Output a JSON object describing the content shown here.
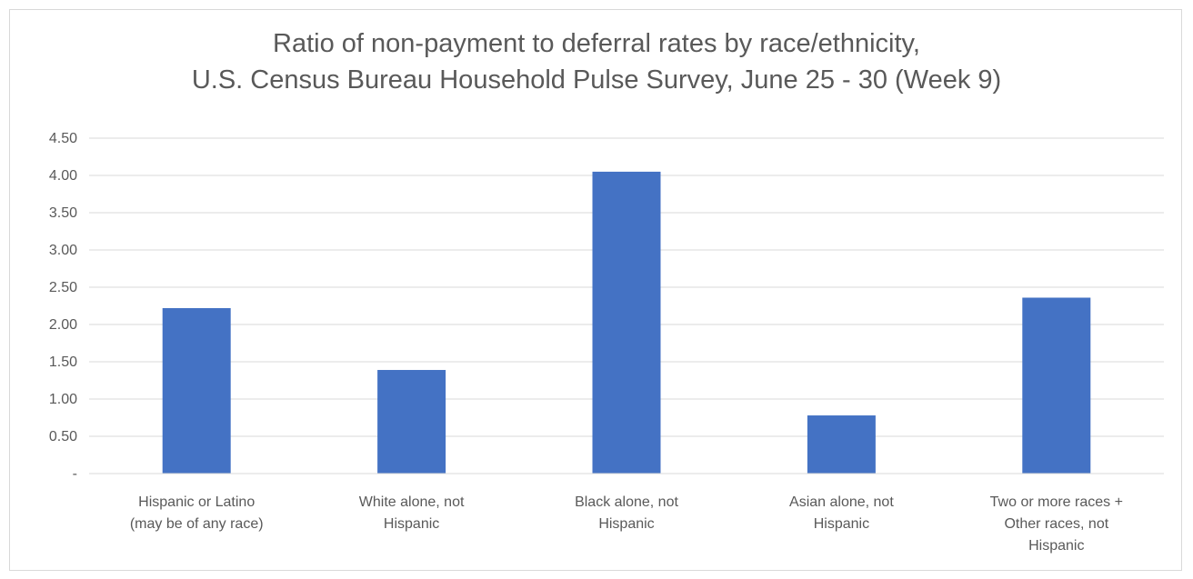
{
  "chart_data": {
    "type": "bar",
    "title_lines": [
      "Ratio of non-payment to deferral rates by race/ethnicity,",
      "U.S. Census Bureau Household Pulse Survey, June 25 - 30 (Week 9)"
    ],
    "xlabel": "",
    "ylabel": "",
    "categories": [
      [
        "Hispanic or Latino",
        "(may be of any race)"
      ],
      [
        "White alone, not",
        "Hispanic"
      ],
      [
        "Black alone, not",
        "Hispanic"
      ],
      [
        "Asian alone, not",
        "Hispanic"
      ],
      [
        "Two or more races +",
        "Other races, not",
        "Hispanic"
      ]
    ],
    "values": [
      2.22,
      1.39,
      4.05,
      0.78,
      2.36
    ],
    "ylim": [
      0,
      4.5
    ],
    "ytick_values": [
      0,
      0.5,
      1,
      1.5,
      2,
      2.5,
      3,
      3.5,
      4,
      4.5
    ],
    "ytick_labels": [
      "-",
      "0.50",
      "1.00",
      "1.50",
      "2.00",
      "2.50",
      "3.00",
      "3.50",
      "4.00",
      "4.50"
    ],
    "grid": true,
    "legend": "none",
    "bar_color": "#4472c4",
    "grid_color": "#d9d9d9",
    "text_color": "#595959"
  }
}
